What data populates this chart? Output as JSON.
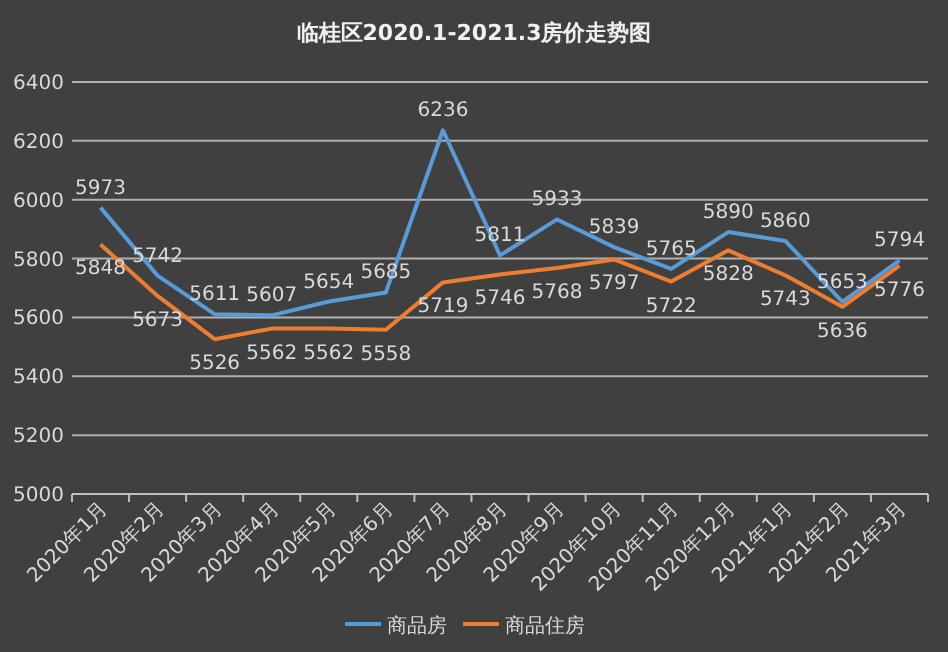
{
  "chart_data": {
    "type": "line",
    "title": "临桂区2020.1-2021.3房价走势图",
    "categories": [
      "2020年1月",
      "2020年2月",
      "2020年3月",
      "2020年4月",
      "2020年5月",
      "2020年6月",
      "2020年7月",
      "2020年8月",
      "2020年9月",
      "2020年10月",
      "2020年11月",
      "2020年12月",
      "2021年1月",
      "2021年2月",
      "2021年3月"
    ],
    "series": [
      {
        "name": "商品房",
        "color": "#5b9bd5",
        "values": [
          5973,
          5742,
          5611,
          5607,
          5654,
          5685,
          6236,
          5811,
          5933,
          5839,
          5765,
          5890,
          5860,
          5653,
          5794
        ]
      },
      {
        "name": "商品住房",
        "color": "#ed7d31",
        "values": [
          5848,
          5673,
          5526,
          5562,
          5562,
          5558,
          5719,
          5746,
          5768,
          5797,
          5722,
          5828,
          5743,
          5636,
          5776
        ]
      }
    ],
    "ylim": [
      5000,
      6400
    ],
    "yticks": [
      5000,
      5200,
      5400,
      5600,
      5800,
      6000,
      6200,
      6400
    ],
    "grid": "y",
    "legend": "bottom",
    "data_labels": true,
    "marker": "none",
    "line_style": "solid"
  }
}
